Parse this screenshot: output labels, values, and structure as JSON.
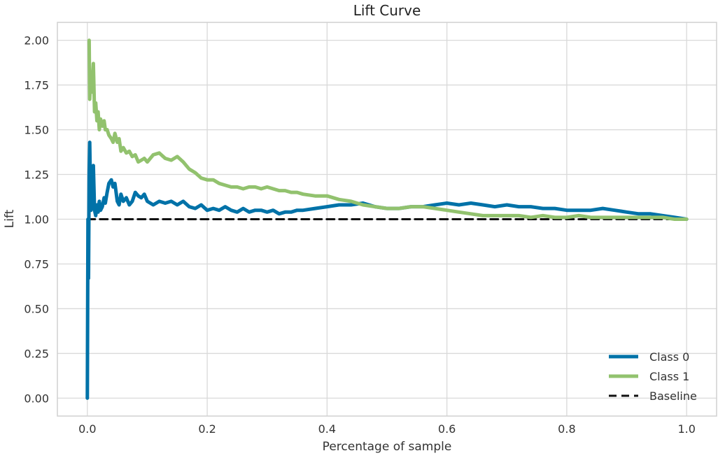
{
  "chart_data": {
    "type": "line",
    "title": "Lift Curve",
    "xlabel": "Percentage of sample",
    "ylabel": "Lift",
    "xlim": [
      -0.05,
      1.05
    ],
    "ylim": [
      -0.1,
      2.1
    ],
    "x_ticks": [
      "0.0",
      "0.2",
      "0.4",
      "0.6",
      "0.8",
      "1.0"
    ],
    "y_ticks": [
      "0.00",
      "0.25",
      "0.50",
      "0.75",
      "1.00",
      "1.25",
      "1.50",
      "1.75",
      "2.00"
    ],
    "grid": true,
    "legend_position": "bottom-right",
    "series": [
      {
        "name": "Class 0",
        "color": "#0072A8",
        "style": "solid",
        "x": [
          0.0,
          0.001,
          0.002,
          0.003,
          0.004,
          0.005,
          0.006,
          0.008,
          0.01,
          0.012,
          0.014,
          0.016,
          0.018,
          0.02,
          0.022,
          0.025,
          0.028,
          0.03,
          0.033,
          0.036,
          0.04,
          0.043,
          0.046,
          0.05,
          0.053,
          0.056,
          0.06,
          0.065,
          0.07,
          0.075,
          0.08,
          0.085,
          0.09,
          0.095,
          0.1,
          0.11,
          0.12,
          0.13,
          0.14,
          0.15,
          0.16,
          0.17,
          0.18,
          0.19,
          0.2,
          0.21,
          0.22,
          0.23,
          0.24,
          0.25,
          0.26,
          0.27,
          0.28,
          0.29,
          0.3,
          0.31,
          0.32,
          0.33,
          0.34,
          0.35,
          0.36,
          0.38,
          0.4,
          0.42,
          0.44,
          0.46,
          0.48,
          0.5,
          0.52,
          0.54,
          0.56,
          0.58,
          0.6,
          0.62,
          0.64,
          0.66,
          0.68,
          0.7,
          0.72,
          0.74,
          0.76,
          0.78,
          0.8,
          0.82,
          0.84,
          0.86,
          0.88,
          0.9,
          0.92,
          0.94,
          0.96,
          0.98,
          1.0
        ],
        "y": [
          0.0,
          1.0,
          0.67,
          1.25,
          1.43,
          1.2,
          1.05,
          1.1,
          1.3,
          1.05,
          1.02,
          1.08,
          1.04,
          1.1,
          1.05,
          1.07,
          1.12,
          1.09,
          1.15,
          1.2,
          1.22,
          1.18,
          1.2,
          1.1,
          1.08,
          1.14,
          1.1,
          1.12,
          1.08,
          1.1,
          1.15,
          1.13,
          1.12,
          1.14,
          1.1,
          1.08,
          1.1,
          1.09,
          1.1,
          1.08,
          1.1,
          1.07,
          1.06,
          1.08,
          1.05,
          1.06,
          1.05,
          1.07,
          1.05,
          1.04,
          1.06,
          1.04,
          1.05,
          1.05,
          1.04,
          1.05,
          1.03,
          1.04,
          1.04,
          1.05,
          1.05,
          1.06,
          1.07,
          1.08,
          1.08,
          1.09,
          1.07,
          1.06,
          1.06,
          1.07,
          1.07,
          1.08,
          1.09,
          1.08,
          1.09,
          1.08,
          1.07,
          1.08,
          1.07,
          1.07,
          1.06,
          1.06,
          1.05,
          1.05,
          1.05,
          1.06,
          1.05,
          1.04,
          1.03,
          1.03,
          1.02,
          1.01,
          1.0
        ]
      },
      {
        "name": "Class 1",
        "color": "#92C26E",
        "style": "solid",
        "x": [
          0.003,
          0.004,
          0.005,
          0.006,
          0.007,
          0.008,
          0.01,
          0.012,
          0.014,
          0.016,
          0.018,
          0.02,
          0.022,
          0.025,
          0.028,
          0.03,
          0.033,
          0.036,
          0.04,
          0.043,
          0.046,
          0.05,
          0.053,
          0.056,
          0.06,
          0.065,
          0.07,
          0.075,
          0.08,
          0.085,
          0.09,
          0.095,
          0.1,
          0.11,
          0.12,
          0.13,
          0.14,
          0.15,
          0.16,
          0.17,
          0.18,
          0.19,
          0.2,
          0.21,
          0.22,
          0.23,
          0.24,
          0.25,
          0.26,
          0.27,
          0.28,
          0.29,
          0.3,
          0.31,
          0.32,
          0.33,
          0.34,
          0.35,
          0.36,
          0.38,
          0.4,
          0.42,
          0.44,
          0.46,
          0.48,
          0.5,
          0.52,
          0.54,
          0.56,
          0.58,
          0.6,
          0.62,
          0.64,
          0.66,
          0.68,
          0.7,
          0.72,
          0.74,
          0.76,
          0.78,
          0.8,
          0.82,
          0.84,
          0.86,
          0.88,
          0.9,
          0.92,
          0.94,
          0.96,
          0.98,
          1.0
        ],
        "y": [
          2.0,
          1.67,
          1.75,
          1.8,
          1.71,
          1.75,
          1.87,
          1.6,
          1.65,
          1.55,
          1.6,
          1.5,
          1.56,
          1.52,
          1.55,
          1.5,
          1.5,
          1.47,
          1.45,
          1.43,
          1.48,
          1.43,
          1.45,
          1.38,
          1.4,
          1.37,
          1.38,
          1.35,
          1.36,
          1.32,
          1.33,
          1.34,
          1.32,
          1.36,
          1.37,
          1.34,
          1.33,
          1.35,
          1.32,
          1.28,
          1.26,
          1.23,
          1.22,
          1.22,
          1.2,
          1.19,
          1.18,
          1.18,
          1.17,
          1.18,
          1.18,
          1.17,
          1.18,
          1.17,
          1.16,
          1.16,
          1.15,
          1.15,
          1.14,
          1.13,
          1.13,
          1.11,
          1.1,
          1.08,
          1.07,
          1.06,
          1.06,
          1.07,
          1.07,
          1.06,
          1.05,
          1.04,
          1.03,
          1.02,
          1.02,
          1.02,
          1.02,
          1.01,
          1.02,
          1.01,
          1.01,
          1.02,
          1.01,
          1.01,
          1.01,
          1.01,
          1.01,
          1.01,
          1.01,
          1.0,
          1.0
        ]
      },
      {
        "name": "Baseline",
        "color": "#111111",
        "style": "dashed",
        "x": [
          0.0,
          1.0
        ],
        "y": [
          1.0,
          1.0
        ]
      }
    ]
  }
}
